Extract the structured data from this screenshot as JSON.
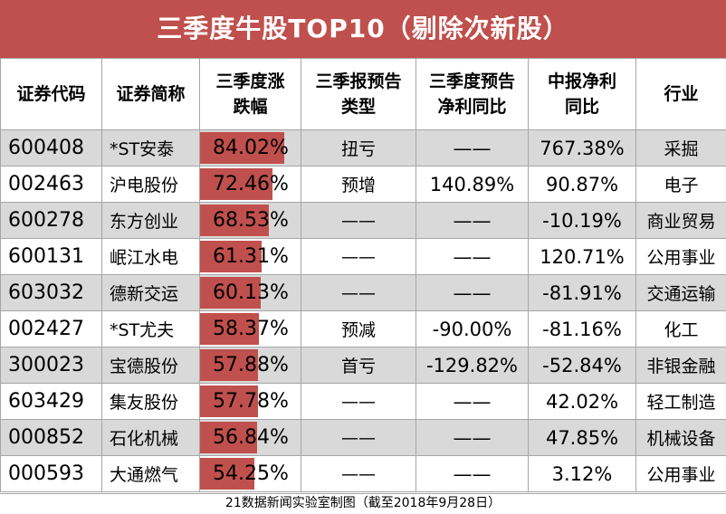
{
  "title": "三季度牛股TOP10（剔除次新股）",
  "header": {
    "code": "证券代码",
    "name": "证券简称",
    "chg_line1": "三季度涨",
    "chg_line2": "跌幅",
    "type_line1": "三季报预告",
    "type_line2": "类型",
    "yoy_line1": "三季度预告",
    "yoy_line2": "净利同比",
    "mid_line1": "中报净利",
    "mid_line2": "同比",
    "industry": "行业"
  },
  "bar_max_pct": 100,
  "bar_color": "#c0504d",
  "rows": [
    {
      "code": "600408",
      "name": "*ST安泰",
      "chg": "84.02%",
      "chg_value": 84.02,
      "type": "扭亏",
      "yoy": "——",
      "mid": "767.38%",
      "industry": "采掘"
    },
    {
      "code": "002463",
      "name": "沪电股份",
      "chg": "72.46%",
      "chg_value": 72.46,
      "type": "预增",
      "yoy": "140.89%",
      "mid": "90.87%",
      "industry": "电子"
    },
    {
      "code": "600278",
      "name": "东方创业",
      "chg": "68.53%",
      "chg_value": 68.53,
      "type": "——",
      "yoy": "——",
      "mid": "-10.19%",
      "industry": "商业贸易"
    },
    {
      "code": "600131",
      "name": "岷江水电",
      "chg": "61.31%",
      "chg_value": 61.31,
      "type": "——",
      "yoy": "——",
      "mid": "120.71%",
      "industry": "公用事业"
    },
    {
      "code": "603032",
      "name": "德新交运",
      "chg": "60.13%",
      "chg_value": 60.13,
      "type": "——",
      "yoy": "——",
      "mid": "-81.91%",
      "industry": "交通运输"
    },
    {
      "code": "002427",
      "name": "*ST尤夫",
      "chg": "58.37%",
      "chg_value": 58.37,
      "type": "预减",
      "yoy": "-90.00%",
      "mid": "-81.16%",
      "industry": "化工"
    },
    {
      "code": "300023",
      "name": "宝德股份",
      "chg": "57.88%",
      "chg_value": 57.88,
      "type": "首亏",
      "yoy": "-129.82%",
      "mid": "-52.84%",
      "industry": "非银金融"
    },
    {
      "code": "603429",
      "name": "集友股份",
      "chg": "57.78%",
      "chg_value": 57.78,
      "type": "——",
      "yoy": "——",
      "mid": "42.02%",
      "industry": "轻工制造"
    },
    {
      "code": "000852",
      "name": "石化机械",
      "chg": "56.84%",
      "chg_value": 56.84,
      "type": "——",
      "yoy": "——",
      "mid": "47.85%",
      "industry": "机械设备"
    },
    {
      "code": "000593",
      "name": "大通燃气",
      "chg": "54.25%",
      "chg_value": 54.25,
      "type": "——",
      "yoy": "——",
      "mid": "3.12%",
      "industry": "公用事业"
    }
  ],
  "footer": "21数据新闻实验室制图（截至2018年9月28日）"
}
